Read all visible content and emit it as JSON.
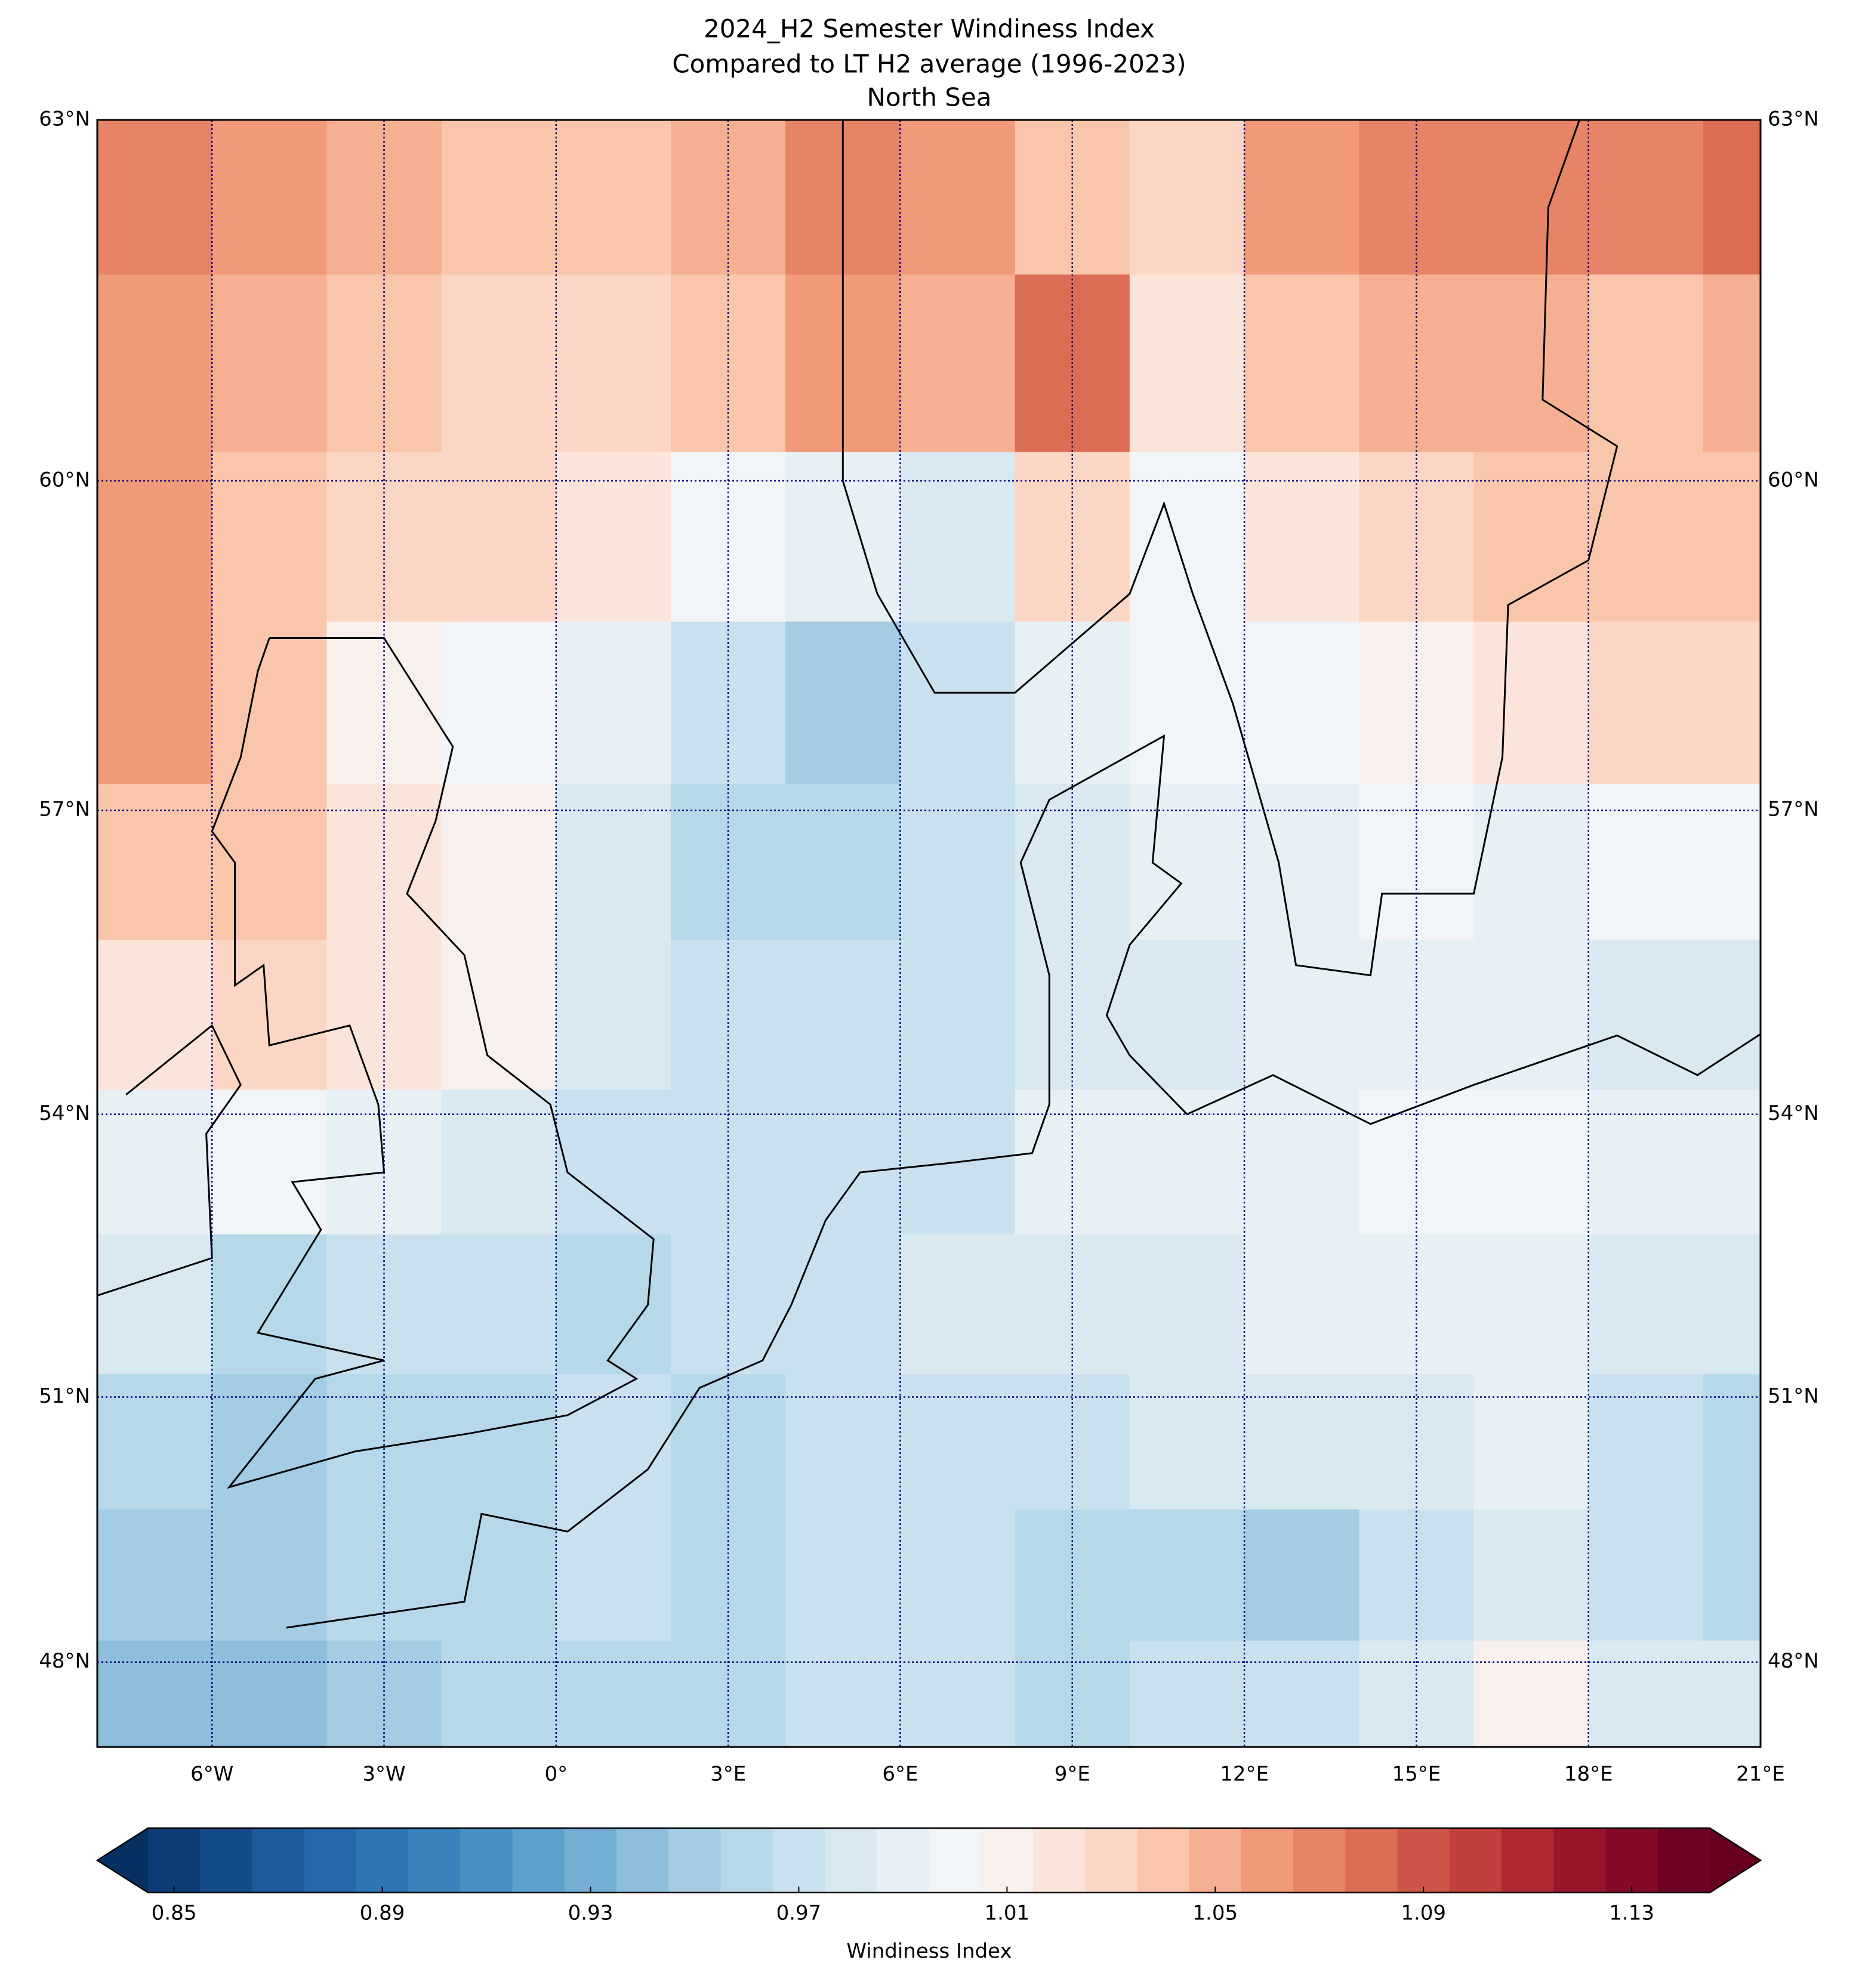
{
  "chart_data": {
    "type": "map",
    "title": [
      "2024_H2 Semester Windiness Index",
      "Compared to LT H2 average (1996-2023)",
      "North Sea"
    ],
    "projection": "mercator",
    "xlim": [
      -8,
      21
    ],
    "ylim": [
      47,
      63
    ],
    "xticks": [
      {
        "value": -6,
        "label": "6°W"
      },
      {
        "value": -3,
        "label": "3°W"
      },
      {
        "value": 0,
        "label": "0°"
      },
      {
        "value": 3,
        "label": "3°E"
      },
      {
        "value": 6,
        "label": "6°E"
      },
      {
        "value": 9,
        "label": "9°E"
      },
      {
        "value": 12,
        "label": "12°E"
      },
      {
        "value": 15,
        "label": "15°E"
      },
      {
        "value": 18,
        "label": "18°E"
      },
      {
        "value": 21,
        "label": "21°E"
      }
    ],
    "yticks": [
      {
        "value": 48,
        "label": "48°N"
      },
      {
        "value": 51,
        "label": "51°N"
      },
      {
        "value": 54,
        "label": "54°N"
      },
      {
        "value": 57,
        "label": "57°N"
      },
      {
        "value": 60,
        "label": "60°N"
      },
      {
        "value": 63,
        "label": "63°N"
      }
    ],
    "grid": true,
    "grid_color": "#000080",
    "lon": [
      -7,
      -5,
      -3,
      -1,
      1,
      3,
      5,
      7,
      9,
      11,
      13,
      15,
      17,
      19,
      21
    ],
    "lat": [
      62.5,
      61,
      59.5,
      58,
      56.5,
      55,
      53.5,
      52,
      50.5,
      49,
      47.5
    ],
    "values": [
      [
        1.07,
        1.06,
        1.05,
        1.04,
        1.04,
        1.05,
        1.07,
        1.06,
        1.04,
        1.03,
        1.06,
        1.07,
        1.07,
        1.07,
        1.08
      ],
      [
        1.06,
        1.05,
        1.04,
        1.03,
        1.03,
        1.04,
        1.06,
        1.05,
        1.08,
        1.02,
        1.04,
        1.05,
        1.05,
        1.04,
        1.05
      ],
      [
        1.06,
        1.04,
        1.03,
        1.03,
        1.02,
        1.0,
        0.99,
        0.98,
        1.03,
        1.0,
        1.02,
        1.03,
        1.04,
        1.04,
        1.04
      ],
      [
        1.06,
        1.04,
        1.01,
        1.0,
        0.99,
        0.97,
        0.95,
        0.97,
        0.99,
        1.0,
        1.0,
        1.01,
        1.02,
        1.03,
        1.03
      ],
      [
        1.04,
        1.04,
        1.02,
        1.01,
        0.98,
        0.96,
        0.96,
        0.97,
        0.98,
        0.99,
        0.99,
        1.0,
        0.99,
        1.0,
        1.0
      ],
      [
        1.02,
        1.03,
        1.02,
        1.01,
        0.98,
        0.97,
        0.97,
        0.97,
        0.98,
        0.98,
        0.99,
        0.99,
        0.99,
        0.98,
        0.98
      ],
      [
        0.99,
        1.0,
        0.99,
        0.98,
        0.97,
        0.97,
        0.97,
        0.97,
        0.99,
        0.99,
        0.99,
        1.0,
        1.0,
        0.99,
        0.99
      ],
      [
        0.98,
        0.96,
        0.97,
        0.97,
        0.96,
        0.97,
        0.97,
        0.98,
        0.98,
        0.98,
        0.99,
        0.99,
        0.99,
        0.98,
        0.98
      ],
      [
        0.96,
        0.95,
        0.96,
        0.96,
        0.97,
        0.96,
        0.97,
        0.97,
        0.97,
        0.98,
        0.98,
        0.98,
        0.99,
        0.97,
        0.96
      ],
      [
        0.95,
        0.95,
        0.96,
        0.96,
        0.97,
        0.96,
        0.97,
        0.97,
        0.96,
        0.96,
        0.95,
        0.97,
        0.98,
        0.97,
        0.96
      ],
      [
        0.94,
        0.94,
        0.95,
        0.96,
        0.96,
        0.96,
        0.97,
        0.97,
        0.96,
        0.97,
        0.97,
        0.98,
        1.01,
        0.98,
        0.98
      ]
    ],
    "colorbar": {
      "label": "Windiness Index",
      "clim": [
        0.845,
        1.145
      ],
      "ticks": [
        0.85,
        0.89,
        0.93,
        0.97,
        1.01,
        1.05,
        1.09,
        1.13
      ],
      "under_color": "#053061",
      "over_color": "#67001f",
      "colors": [
        "#0b3d74",
        "#154b88",
        "#1f5a9c",
        "#2766aa",
        "#2f74b3",
        "#3a82bb",
        "#4a91c3",
        "#5da0cb",
        "#76afd4",
        "#8dbfdd",
        "#a4cce3",
        "#b7d8e9",
        "#c9e1ee",
        "#d9e9f2",
        "#e7f0f5",
        "#f2f5f7",
        "#f8f0ec",
        "#fbe5da",
        "#fbd6c4",
        "#f9c5ab",
        "#f5b091",
        "#f09a7a",
        "#e78366",
        "#dc6d55",
        "#cf5548",
        "#c13f3c",
        "#b02831",
        "#9a142c",
        "#840a28",
        "#6e0323"
      ]
    }
  }
}
